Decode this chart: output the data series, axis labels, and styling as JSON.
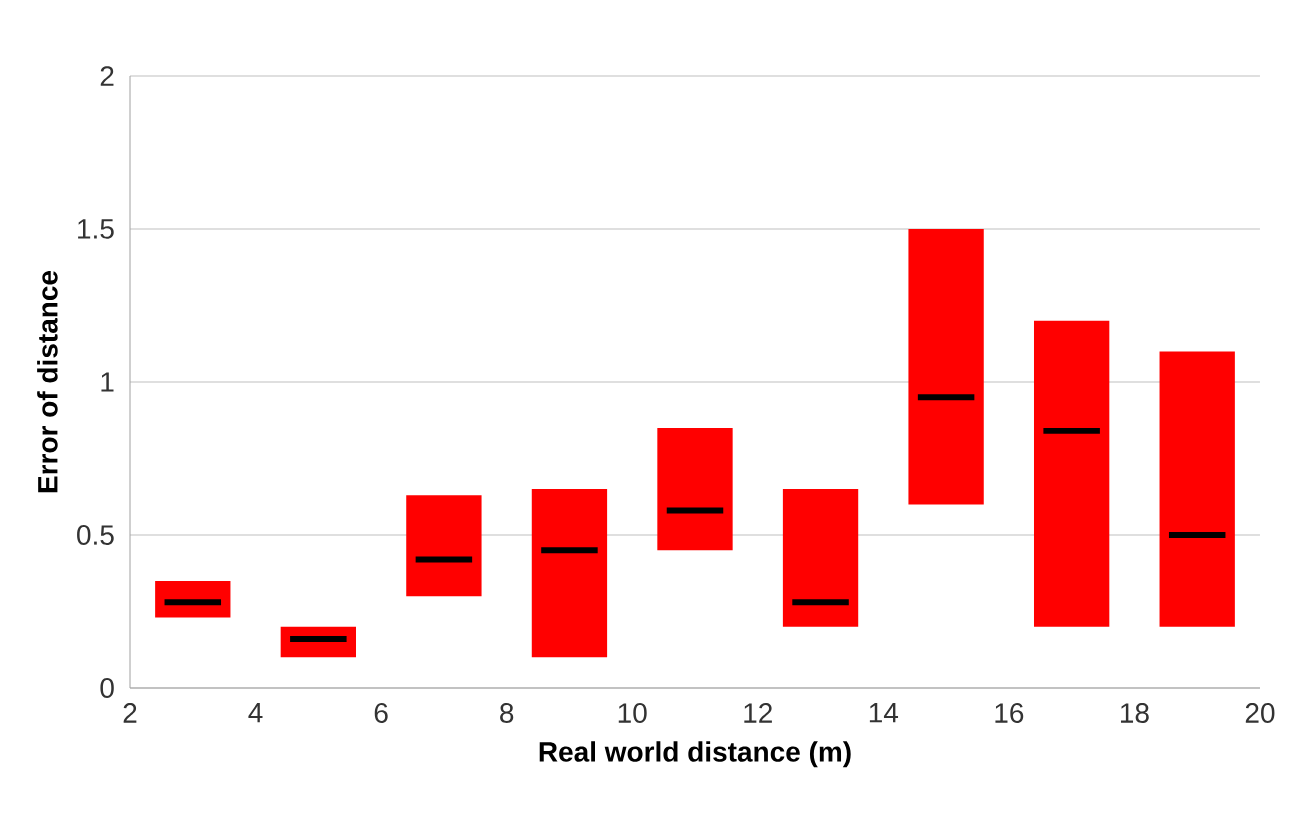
{
  "chart_data": {
    "type": "box",
    "xlabel": "Real world distance (m)",
    "ylabel": "Error of distance",
    "x": [
      3,
      5,
      7,
      9,
      11,
      13,
      15,
      17,
      19
    ],
    "boxes": [
      {
        "low": 0.23,
        "q1": 0.23,
        "median": 0.28,
        "q3": 0.35,
        "high": 0.35
      },
      {
        "low": 0.1,
        "q1": 0.1,
        "median": 0.16,
        "q3": 0.2,
        "high": 0.2
      },
      {
        "low": 0.3,
        "q1": 0.3,
        "median": 0.42,
        "q3": 0.63,
        "high": 0.63
      },
      {
        "low": 0.1,
        "q1": 0.1,
        "median": 0.45,
        "q3": 0.65,
        "high": 0.65
      },
      {
        "low": 0.45,
        "q1": 0.45,
        "median": 0.58,
        "q3": 0.85,
        "high": 0.85
      },
      {
        "low": 0.2,
        "q1": 0.2,
        "median": 0.28,
        "q3": 0.65,
        "high": 0.65
      },
      {
        "low": 0.6,
        "q1": 0.6,
        "median": 0.95,
        "q3": 1.5,
        "high": 1.5
      },
      {
        "low": 0.2,
        "q1": 0.2,
        "median": 0.84,
        "q3": 1.2,
        "high": 1.2
      },
      {
        "low": 0.2,
        "q1": 0.2,
        "median": 0.5,
        "q3": 1.1,
        "high": 1.1
      }
    ],
    "color": "#ff0000",
    "xlim": [
      2,
      20
    ],
    "xticks": [
      2,
      4,
      6,
      8,
      10,
      12,
      14,
      16,
      18,
      20
    ],
    "ylim": [
      0,
      2
    ],
    "yticks": [
      0,
      0.5,
      1,
      1.5,
      2
    ],
    "grid": "y"
  }
}
